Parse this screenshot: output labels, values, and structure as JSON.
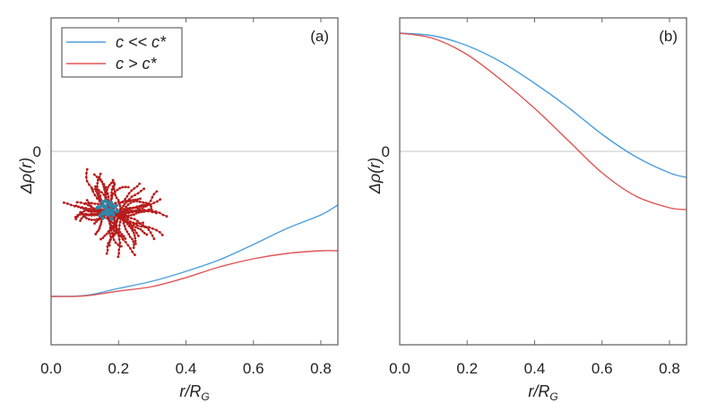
{
  "chart_data": [
    {
      "type": "line",
      "panel_label": "(a)",
      "xlabel": "r/R_G",
      "ylabel": "Δρ(r)",
      "xlim": [
        0,
        0.85
      ],
      "ylim": [
        -1.08,
        0.745
      ],
      "xticks": [
        "0.0",
        "0.2",
        "0.4",
        "0.6",
        "0.8"
      ],
      "yticks": [
        "0"
      ],
      "zero_line": true,
      "legend": {
        "placement": "top-left",
        "entries": [
          "c << c*",
          "c > c*"
        ]
      },
      "x": [
        0,
        0.1,
        0.2,
        0.3,
        0.4,
        0.5,
        0.6,
        0.7,
        0.8,
        0.85
      ],
      "series": [
        {
          "name": "c << c*",
          "color": "#4a9fe0",
          "values": [
            -0.81,
            -0.805,
            -0.765,
            -0.725,
            -0.67,
            -0.605,
            -0.52,
            -0.43,
            -0.355,
            -0.3
          ]
        },
        {
          "name": "c > c*",
          "color": "#e05555",
          "values": [
            -0.81,
            -0.807,
            -0.78,
            -0.755,
            -0.705,
            -0.645,
            -0.6,
            -0.57,
            -0.555,
            -0.555
          ]
        }
      ]
    },
    {
      "type": "line",
      "panel_label": "(b)",
      "xlabel": "r/R_G",
      "ylabel": "Δρ(r)",
      "xlim": [
        0,
        0.85
      ],
      "ylim": [
        -1.08,
        0.745
      ],
      "xticks": [
        "0.0",
        "0.2",
        "0.4",
        "0.6",
        "0.8"
      ],
      "yticks": [
        "0"
      ],
      "zero_line": true,
      "x": [
        0,
        0.1,
        0.2,
        0.3,
        0.4,
        0.5,
        0.6,
        0.7,
        0.8,
        0.85
      ],
      "series": [
        {
          "name": "c << c*",
          "color": "#4a9fe0",
          "values": [
            0.66,
            0.645,
            0.59,
            0.5,
            0.38,
            0.245,
            0.095,
            -0.03,
            -0.12,
            -0.145
          ]
        },
        {
          "name": "c > c*",
          "color": "#e05555",
          "values": [
            0.66,
            0.63,
            0.54,
            0.4,
            0.24,
            0.06,
            -0.12,
            -0.25,
            -0.315,
            -0.325
          ]
        }
      ]
    }
  ]
}
